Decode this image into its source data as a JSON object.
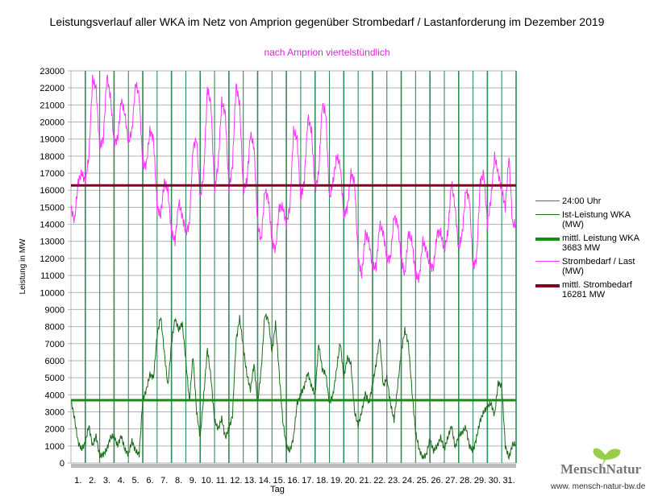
{
  "chart_data": {
    "type": "line",
    "title": "Leistungsverlauf aller WKA im Netz von Amprion gegenüber  Strombedarf / Lastanforderung im Dezember 2019",
    "subtitle": "nach Amprion viertelstündlich",
    "xlabel": "Tag",
    "ylabel": "Leistung in MW",
    "ylim": [
      0,
      23000
    ],
    "yticks": [
      0,
      1000,
      2000,
      3000,
      4000,
      5000,
      6000,
      7000,
      8000,
      9000,
      10000,
      11000,
      12000,
      13000,
      14000,
      15000,
      16000,
      17000,
      18000,
      19000,
      20000,
      21000,
      22000,
      23000
    ],
    "xticks": [
      "1.",
      "2.",
      "3.",
      "4.",
      "5.",
      "6.",
      "7.",
      "8.",
      "9.",
      "10.",
      "11.",
      "12.",
      "13.",
      "14.",
      "15.",
      "16.",
      "17.",
      "18.",
      "19.",
      "20.",
      "21.",
      "22.",
      "23.",
      "24.",
      "25.",
      "26.",
      "27.",
      "28.",
      "29.",
      "30.",
      "31."
    ],
    "samples_per_day": 4,
    "series": [
      {
        "name": "Strombedarf / Last (MW)",
        "color": "#ff33ff",
        "values": [
          15000,
          14200,
          16500,
          17000,
          16500,
          18000,
          22500,
          22000,
          18500,
          19000,
          22700,
          21500,
          18800,
          19000,
          21300,
          20500,
          18800,
          19500,
          22300,
          21500,
          17500,
          17500,
          19500,
          19000,
          15000,
          14500,
          16500,
          16000,
          13500,
          13000,
          15300,
          14500,
          13500,
          14000,
          18500,
          19000,
          15500,
          17000,
          22000,
          21000,
          16000,
          17500,
          21200,
          20500,
          16000,
          17500,
          22200,
          21000,
          16000,
          16500,
          19300,
          18500,
          14000,
          13000,
          16000,
          15500,
          13000,
          12500,
          15000,
          15000,
          14000,
          15000,
          19500,
          19000,
          15500,
          16500,
          20300,
          19500,
          16000,
          17000,
          21000,
          20500,
          15500,
          16500,
          18000,
          17500,
          14500,
          15000,
          17000,
          16500,
          12000,
          11000,
          13500,
          13000,
          11500,
          11500,
          14000,
          13500,
          12000,
          12000,
          14500,
          14000,
          12000,
          11000,
          13500,
          13000,
          11000,
          10800,
          13000,
          12500,
          11500,
          11500,
          13500,
          13500,
          12500,
          13500,
          16500,
          15000,
          12500,
          13500,
          16000,
          15500,
          11500,
          12000,
          16500,
          17000,
          14000,
          15500,
          18000,
          17000,
          16000,
          15000,
          18000,
          14000
        ]
      },
      {
        "name": "Ist-Leistung WKA (MW)",
        "color": "#1a6b1a",
        "values": [
          3700,
          2600,
          1200,
          800,
          1200,
          2200,
          1000,
          1600,
          400,
          500,
          800,
          1500,
          1600,
          1000,
          1600,
          800,
          500,
          1300,
          700,
          500,
          3700,
          4300,
          5200,
          5000,
          7500,
          8600,
          6500,
          4500,
          7000,
          8500,
          7800,
          8200,
          6000,
          3600,
          6300,
          3000,
          1500,
          4000,
          6700,
          5000,
          2500,
          2000,
          2600,
          1500,
          2000,
          2800,
          7200,
          8500,
          6800,
          5200,
          4300,
          5800,
          3500,
          5500,
          8700,
          8400,
          6500,
          8200,
          5300,
          2500,
          1000,
          700,
          1500,
          3500,
          4000,
          4500,
          5300,
          4500,
          4000,
          7000,
          5500,
          5200,
          3500,
          4000,
          5500,
          7100,
          5000,
          6200,
          5800,
          3000,
          2200,
          3000,
          4100,
          3500,
          4600,
          5800,
          7400,
          4500,
          5000,
          3500,
          2500,
          4500,
          6500,
          7800,
          7000,
          4200,
          1800,
          800,
          300,
          500,
          1400,
          700,
          1000,
          1500,
          800,
          1500,
          2200,
          900,
          1600,
          1800,
          2100,
          1000,
          700,
          1500,
          2500,
          3000,
          3300,
          3500,
          2800,
          4700,
          4500,
          1000,
          300,
          1100
        ]
      }
    ],
    "averages": [
      {
        "name": "mittl. Leistung WKA",
        "value_label": "3683 MW",
        "value": 3683,
        "color": "#1a8a1a"
      },
      {
        "name": "mittl. Strombedarf",
        "value_label": "16281 MW",
        "value": 16281,
        "color": "#800020"
      }
    ],
    "legend": {
      "placement": "right",
      "entries": [
        {
          "label": "24:00 Uhr",
          "sub": "",
          "color": "#2e8b57",
          "w": 1
        },
        {
          "label": "Ist-Leistung WKA",
          "sub": "(MW)",
          "color": "#1a6b1a",
          "w": 1
        },
        {
          "label": "mittl. Leistung WKA",
          "sub": "3683 MW",
          "color": "#1a8a1a",
          "w": 4
        },
        {
          "label": "Strombedarf / Last",
          "sub": "(MW)",
          "color": "#ff33ff",
          "w": 1
        },
        {
          "label": "mittl. Strombedarf",
          "sub": "16281 MW",
          "color": "#800020",
          "w": 4
        }
      ]
    }
  },
  "logo": {
    "name": "MenschNatur",
    "url": "www. mensch-natur-bw.de"
  }
}
